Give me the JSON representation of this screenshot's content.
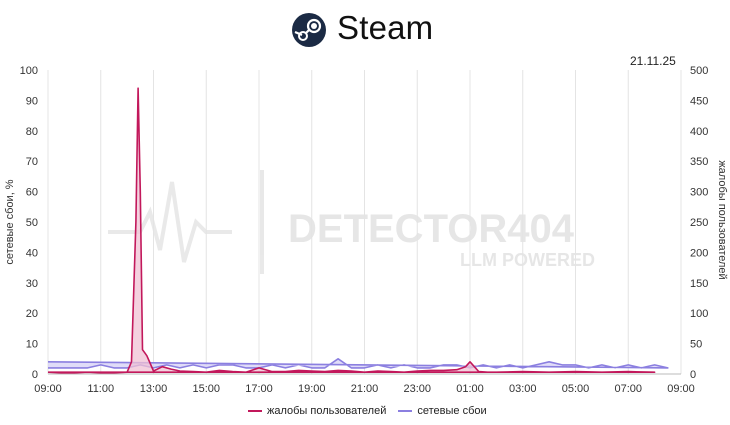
{
  "header": {
    "app_title": "Steam",
    "logo_icon": "steam-logo-icon"
  },
  "date_label": "21.11.25",
  "watermark": {
    "line1": "DETECTOR404",
    "line2": "LLM POWERED"
  },
  "legend": {
    "complaints": "жалобы пользователей",
    "outages": "сетевые сбои"
  },
  "colors": {
    "complaints": "#c2185b",
    "outages": "#8b7fe0",
    "outages_fill": "#d6d0f5",
    "complaints_fill": "#f0c2d4"
  },
  "chart_data": {
    "type": "area",
    "x_ticks": [
      "09:00",
      "11:00",
      "13:00",
      "15:00",
      "17:00",
      "19:00",
      "21:00",
      "23:00",
      "01:00",
      "03:00",
      "05:00",
      "07:00",
      "09:00"
    ],
    "y_left": {
      "label": "сетевые сбои, %",
      "ticks": [
        "0",
        "10",
        "20",
        "30",
        "40",
        "50",
        "60",
        "70",
        "80",
        "90",
        "100"
      ],
      "range": [
        0,
        100
      ]
    },
    "y_right": {
      "label": "жалобы пользователей",
      "ticks": [
        "0",
        "50",
        "100",
        "150",
        "200",
        "250",
        "300",
        "350",
        "400",
        "450",
        "500"
      ],
      "range": [
        0,
        500
      ]
    },
    "grid": "vertical",
    "legend_position": "bottom",
    "series": [
      {
        "name": "жалобы пользователей",
        "axis": "right",
        "x": [
          "09:00",
          "09:30",
          "10:00",
          "10:30",
          "11:00",
          "11:30",
          "12:00",
          "12:10",
          "12:20",
          "12:25",
          "12:30",
          "12:35",
          "12:40",
          "12:45",
          "13:00",
          "13:20",
          "13:40",
          "14:00",
          "14:30",
          "15:00",
          "15:30",
          "16:00",
          "16:30",
          "17:00",
          "17:30",
          "18:00",
          "18:30",
          "19:00",
          "19:30",
          "20:00",
          "20:30",
          "21:00",
          "21:30",
          "22:00",
          "22:30",
          "23:00",
          "23:30",
          "00:00",
          "00:30",
          "00:50",
          "01:00",
          "01:20",
          "01:40",
          "02:00",
          "03:00",
          "04:00",
          "05:00",
          "06:00",
          "07:00",
          "08:00",
          "09:00"
        ],
        "values": [
          3,
          2,
          2,
          3,
          2,
          2,
          3,
          20,
          250,
          470,
          300,
          40,
          35,
          30,
          5,
          12,
          8,
          5,
          4,
          3,
          6,
          4,
          3,
          10,
          4,
          4,
          6,
          5,
          4,
          6,
          5,
          3,
          5,
          4,
          3,
          5,
          6,
          6,
          7,
          12,
          20,
          4,
          3,
          3,
          4,
          3,
          4,
          3,
          4,
          3,
          3
        ]
      },
      {
        "name": "сетевые сбои",
        "axis": "left",
        "x": [
          "09:00",
          "09:30",
          "10:00",
          "10:30",
          "11:00",
          "11:30",
          "12:00",
          "12:30",
          "13:00",
          "13:30",
          "14:00",
          "14:30",
          "15:00",
          "15:30",
          "16:00",
          "16:30",
          "17:00",
          "17:30",
          "18:00",
          "18:30",
          "19:00",
          "19:30",
          "20:00",
          "20:30",
          "21:00",
          "21:30",
          "22:00",
          "22:30",
          "23:00",
          "23:30",
          "00:00",
          "00:30",
          "01:00",
          "01:30",
          "02:00",
          "02:30",
          "03:00",
          "03:30",
          "04:00",
          "04:30",
          "05:00",
          "05:30",
          "06:00",
          "06:30",
          "07:00",
          "07:30",
          "08:00",
          "08:30",
          "09:00"
        ],
        "values": [
          2,
          2,
          2,
          2,
          3,
          2,
          2,
          3,
          2,
          3,
          2,
          3,
          2,
          3,
          3,
          2,
          2,
          3,
          2,
          3,
          2,
          2,
          5,
          2,
          2,
          3,
          2,
          3,
          2,
          2,
          3,
          3,
          2,
          3,
          2,
          3,
          2,
          3,
          4,
          3,
          3,
          2,
          3,
          2,
          3,
          2,
          3,
          2,
          4
        ]
      }
    ]
  }
}
